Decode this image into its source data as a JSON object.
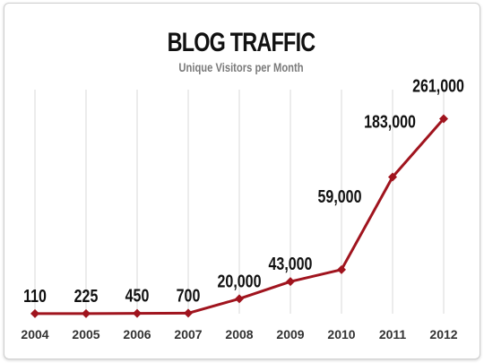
{
  "chart_data": {
    "type": "line",
    "title": "BLOG TRAFFIC",
    "subtitle": "Unique Visitors per Month",
    "xlabel": "",
    "ylabel": "",
    "x": [
      "2004",
      "2005",
      "2006",
      "2007",
      "2008",
      "2009",
      "2010",
      "2011",
      "2012"
    ],
    "series": [
      {
        "values": [
          110,
          225,
          450,
          700,
          20000,
          43000,
          59000,
          183000,
          261000
        ],
        "data_labels": [
          "110",
          "225",
          "450",
          "700",
          "20,000",
          "43,000",
          "59,000",
          "183,000",
          "261,000"
        ]
      }
    ],
    "ylim": [
      0,
      270000
    ],
    "grid": "vertical",
    "legend": "none",
    "colors": {
      "line": "#a0141e",
      "grid": "#d9d9d9",
      "background": "#ffffff"
    }
  }
}
